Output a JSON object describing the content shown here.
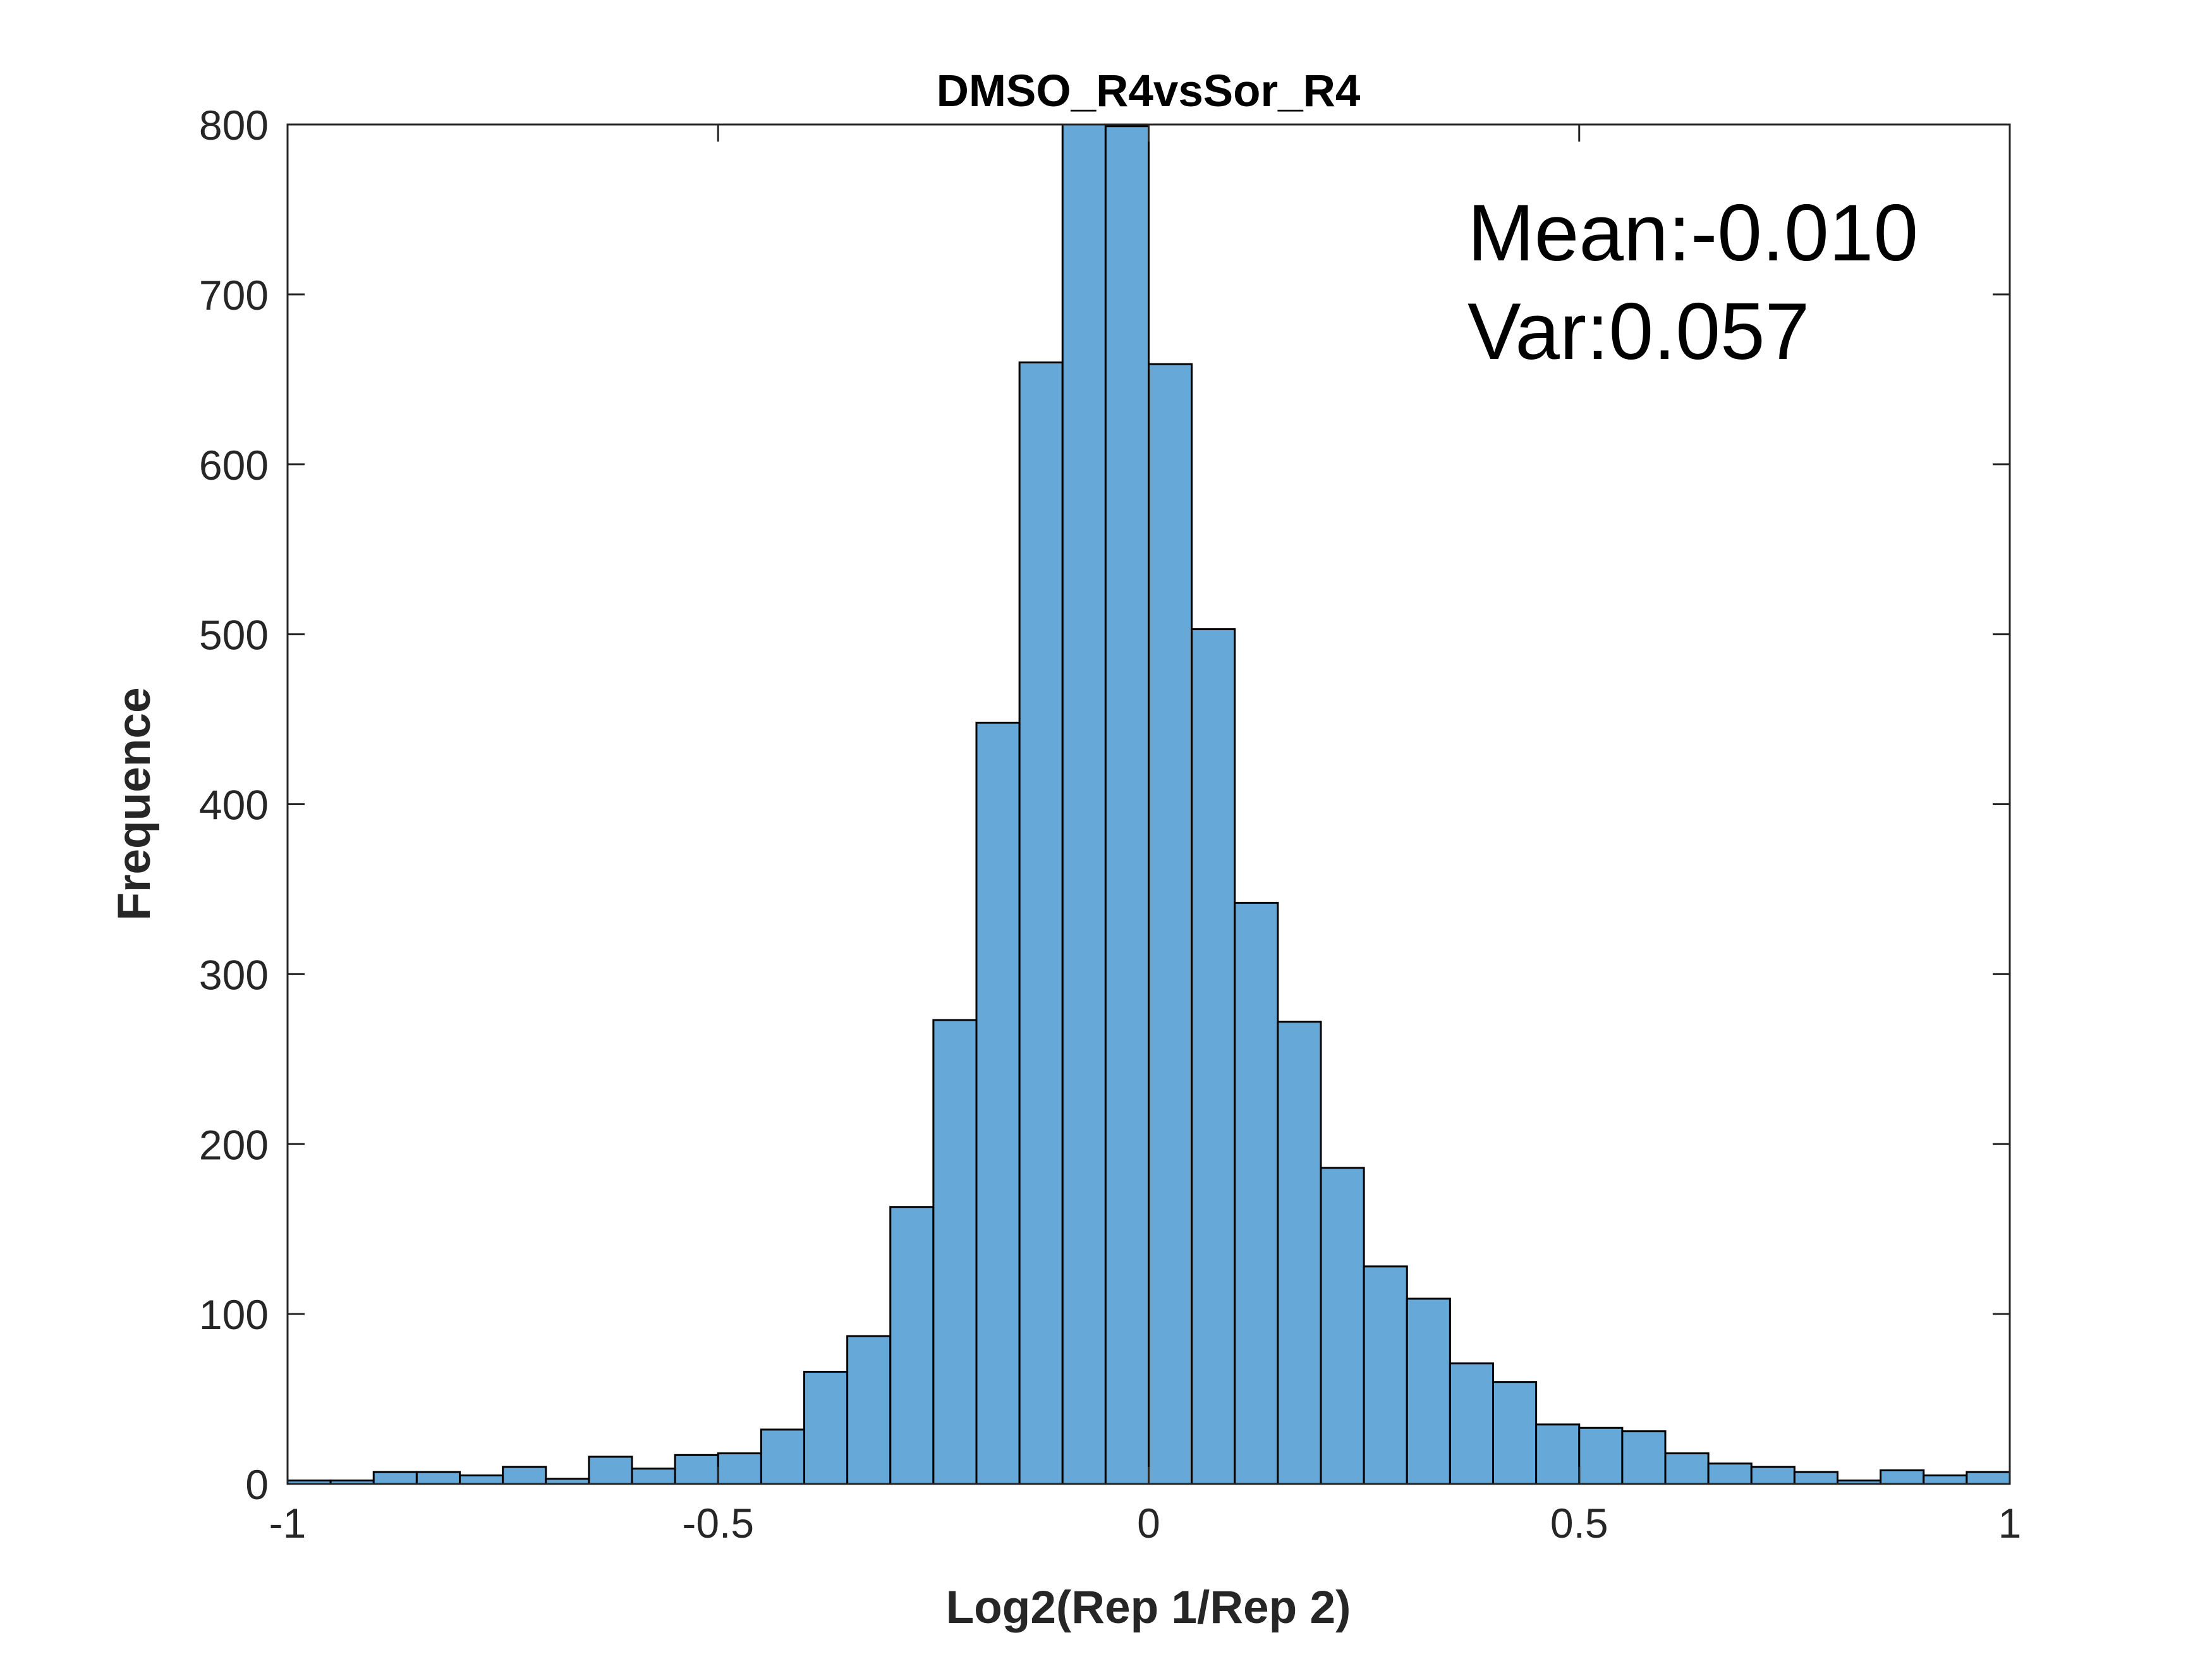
{
  "chart_data": {
    "type": "bar",
    "title": "DMSO_R4vsSor_R4",
    "xlabel": "Log2(Rep 1/Rep 2)",
    "ylabel": "Frequence",
    "xlim": [
      -1,
      1
    ],
    "ylim": [
      0,
      800
    ],
    "xticks": [
      "-1",
      "-0.5",
      "0",
      "0.5",
      "1"
    ],
    "yticks": [
      "0",
      "100",
      "200",
      "300",
      "400",
      "500",
      "600",
      "700",
      "800"
    ],
    "xtick_values": [
      -1,
      -0.5,
      0,
      0.5,
      1
    ],
    "ytick_values": [
      0,
      100,
      200,
      300,
      400,
      500,
      600,
      700,
      800
    ],
    "bin_edges": [
      -1.0,
      -0.95,
      -0.9,
      -0.85,
      -0.8,
      -0.75,
      -0.7,
      -0.65,
      -0.6,
      -0.55,
      -0.5,
      -0.45,
      -0.4,
      -0.35,
      -0.3,
      -0.25,
      -0.2,
      -0.15,
      -0.1,
      -0.05,
      0.0,
      0.05,
      0.1,
      0.15,
      0.2,
      0.25,
      0.3,
      0.35,
      0.4,
      0.45,
      0.5,
      0.55,
      0.6,
      0.65,
      0.7,
      0.75,
      0.8,
      0.85,
      0.9,
      0.95,
      1.0
    ],
    "values": [
      2,
      2,
      7,
      7,
      5,
      10,
      3,
      16,
      9,
      17,
      18,
      32,
      66,
      87,
      163,
      273,
      448,
      660,
      800,
      799,
      659,
      503,
      342,
      272,
      186,
      128,
      109,
      71,
      60,
      35,
      33,
      31,
      18,
      12,
      10,
      7,
      2,
      8,
      5,
      7
    ],
    "annotations": [
      "Mean:-0.010",
      "Var:0.057"
    ],
    "grid": false,
    "bar_color": "#66a9d8",
    "edge_color": "#000000"
  }
}
